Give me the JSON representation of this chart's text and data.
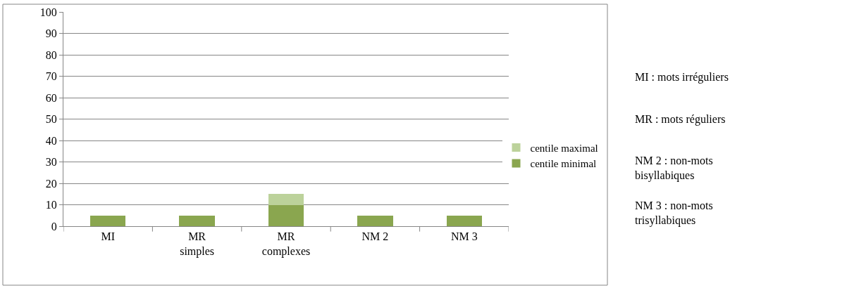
{
  "chart_data": {
    "type": "bar",
    "stacked": true,
    "categories": [
      "MI",
      "MR simples",
      "MR complexes",
      "NM 2",
      "NM 3"
    ],
    "series": [
      {
        "name": "centile minimal",
        "color": "#8aa64f",
        "values": [
          5,
          5,
          10,
          5,
          5
        ]
      },
      {
        "name": "centile maximal",
        "color": "#bcd29b",
        "values": [
          null,
          null,
          5,
          null,
          null
        ]
      }
    ],
    "ylim": [
      0,
      100
    ],
    "yticks": [
      0,
      10,
      20,
      30,
      40,
      50,
      60,
      70,
      80,
      90,
      100
    ],
    "grid": "y",
    "legend": "right",
    "annotations": [
      "MI : mots irréguliers",
      "MR : mots réguliers",
      "NM 2 : non-mots bisyllabiques",
      "NM 3 : non-mots trisyllabiques"
    ]
  }
}
